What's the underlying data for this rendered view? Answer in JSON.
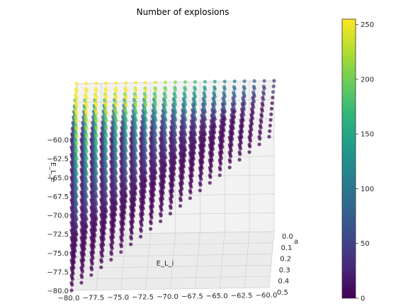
{
  "chart_data": {
    "type": "scatter",
    "title": "Number of explosions",
    "xlabel": "E_L_i",
    "ylabel": "a",
    "zlabel": "E_L_e",
    "x_ticks": [
      "−80.0",
      "−77.5",
      "−75.0",
      "−72.5",
      "−70.0",
      "−67.5",
      "−65.0",
      "−62.5",
      "−60.0"
    ],
    "y_ticks": [
      "0.0",
      "0.1",
      "0.2",
      "0.3",
      "0.4",
      "0.5"
    ],
    "z_ticks": [
      "−60.0",
      "−62.5",
      "−65.0",
      "−67.5",
      "−70.0",
      "−72.5",
      "−75.0",
      "−77.5",
      "−80.0"
    ],
    "xlim": [
      -80,
      -60
    ],
    "ylim": [
      0.0,
      0.5
    ],
    "zlim": [
      -80,
      -60
    ],
    "constraint": "points only where E_L_e >= E_L_i",
    "colorbar": {
      "min": 0,
      "max": 255,
      "ticks": [
        "0",
        "50",
        "100",
        "150",
        "200",
        "250"
      ],
      "colormap": "viridis"
    },
    "grid": true
  }
}
